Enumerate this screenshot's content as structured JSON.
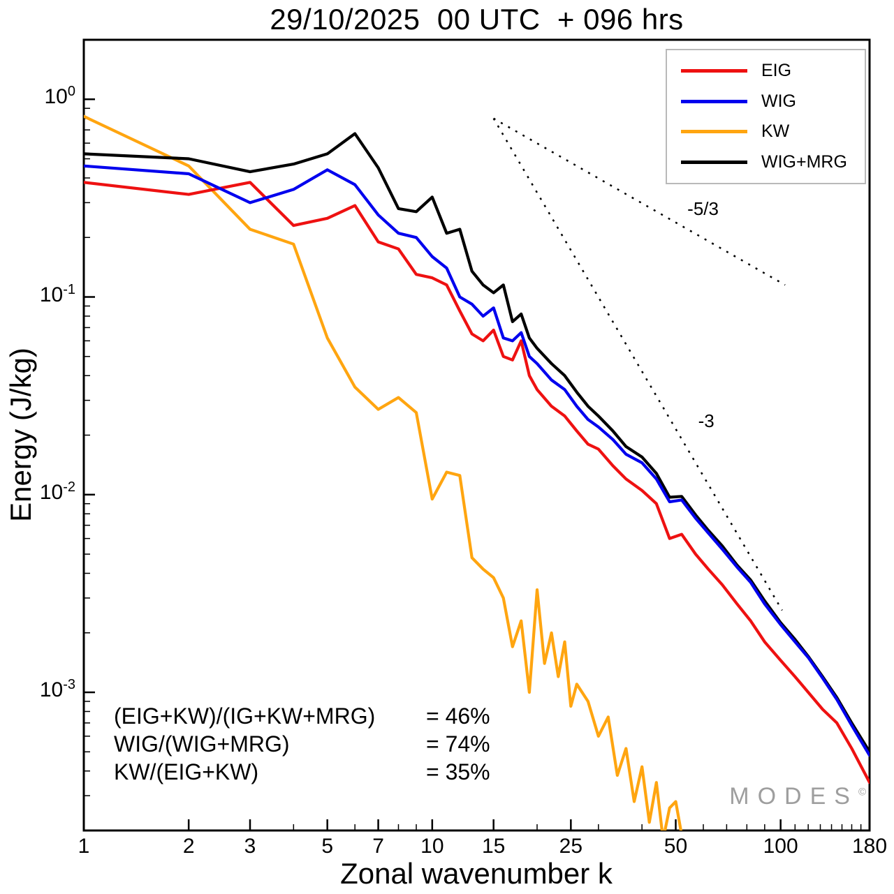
{
  "chart_data": {
    "type": "line",
    "title": "29/10/2025  00 UTC  + 096 hrs",
    "xlabel": "Zonal wavenumber k",
    "ylabel": "Energy (J/kg)",
    "x_scale": "log",
    "y_scale": "log",
    "xlim": [
      1,
      180
    ],
    "ylim": [
      0.0002,
      2
    ],
    "grid": false,
    "legend_position": "top-right",
    "x_major_ticks": [
      1,
      2,
      3,
      5,
      7,
      10,
      15,
      25,
      50,
      100,
      180
    ],
    "x_minor_ticks": [
      4,
      6,
      8,
      9,
      20,
      30,
      40,
      60,
      70,
      80,
      90,
      110,
      120,
      130,
      140,
      150,
      160,
      170
    ],
    "y_major_ticks": [
      {
        "base": "10",
        "exp": "0",
        "value": 1
      },
      {
        "base": "10",
        "exp": "-1",
        "value": 0.1
      },
      {
        "base": "10",
        "exp": "-2",
        "value": 0.01
      },
      {
        "base": "10",
        "exp": "-3",
        "value": 0.001
      }
    ],
    "y_minor_mantissas": [
      2,
      3,
      4,
      5,
      6,
      7,
      8,
      9
    ],
    "series": [
      {
        "name": "EIG",
        "color": "#ee1111",
        "points": [
          [
            1,
            0.38
          ],
          [
            2,
            0.33
          ],
          [
            3,
            0.38
          ],
          [
            4,
            0.23
          ],
          [
            5,
            0.25
          ],
          [
            6,
            0.29
          ],
          [
            7,
            0.19
          ],
          [
            8,
            0.175
          ],
          [
            9,
            0.13
          ],
          [
            10,
            0.125
          ],
          [
            11,
            0.115
          ],
          [
            12,
            0.085
          ],
          [
            13,
            0.065
          ],
          [
            14,
            0.06
          ],
          [
            15,
            0.068
          ],
          [
            16,
            0.05
          ],
          [
            17,
            0.048
          ],
          [
            18,
            0.06
          ],
          [
            19,
            0.04
          ],
          [
            20,
            0.034
          ],
          [
            22,
            0.028
          ],
          [
            24,
            0.025
          ],
          [
            26,
            0.021
          ],
          [
            28,
            0.018
          ],
          [
            30,
            0.017
          ],
          [
            33,
            0.014
          ],
          [
            36,
            0.012
          ],
          [
            40,
            0.0105
          ],
          [
            44,
            0.009
          ],
          [
            48,
            0.006
          ],
          [
            52,
            0.0063
          ],
          [
            57,
            0.005
          ],
          [
            62,
            0.0042
          ],
          [
            68,
            0.0035
          ],
          [
            75,
            0.0028
          ],
          [
            82,
            0.0023
          ],
          [
            90,
            0.0018
          ],
          [
            100,
            0.00145
          ],
          [
            110,
            0.0012
          ],
          [
            120,
            0.001
          ],
          [
            132,
            0.00082
          ],
          [
            145,
            0.0007
          ],
          [
            160,
            0.00052
          ],
          [
            180,
            0.00035
          ]
        ]
      },
      {
        "name": "WIG",
        "color": "#0000ee",
        "points": [
          [
            1,
            0.46
          ],
          [
            2,
            0.42
          ],
          [
            3,
            0.3
          ],
          [
            4,
            0.35
          ],
          [
            5,
            0.44
          ],
          [
            6,
            0.37
          ],
          [
            7,
            0.26
          ],
          [
            8,
            0.21
          ],
          [
            9,
            0.2
          ],
          [
            10,
            0.16
          ],
          [
            11,
            0.14
          ],
          [
            12,
            0.1
          ],
          [
            13,
            0.092
          ],
          [
            14,
            0.08
          ],
          [
            15,
            0.088
          ],
          [
            16,
            0.062
          ],
          [
            17,
            0.06
          ],
          [
            18,
            0.066
          ],
          [
            19,
            0.05
          ],
          [
            20,
            0.046
          ],
          [
            22,
            0.038
          ],
          [
            24,
            0.034
          ],
          [
            26,
            0.028
          ],
          [
            28,
            0.024
          ],
          [
            30,
            0.022
          ],
          [
            33,
            0.019
          ],
          [
            36,
            0.016
          ],
          [
            40,
            0.0145
          ],
          [
            44,
            0.012
          ],
          [
            48,
            0.0092
          ],
          [
            52,
            0.0094
          ],
          [
            57,
            0.0076
          ],
          [
            62,
            0.0064
          ],
          [
            68,
            0.0053
          ],
          [
            75,
            0.0043
          ],
          [
            82,
            0.0036
          ],
          [
            90,
            0.0028
          ],
          [
            100,
            0.0022
          ],
          [
            110,
            0.0018
          ],
          [
            120,
            0.0015
          ],
          [
            132,
            0.00118
          ],
          [
            145,
            0.00092
          ],
          [
            160,
            0.00068
          ],
          [
            180,
            0.00048
          ]
        ]
      },
      {
        "name": "KW",
        "color": "#ffa510",
        "points": [
          [
            1,
            0.82
          ],
          [
            2,
            0.46
          ],
          [
            3,
            0.22
          ],
          [
            4,
            0.185
          ],
          [
            5,
            0.062
          ],
          [
            6,
            0.035
          ],
          [
            7,
            0.027
          ],
          [
            8,
            0.031
          ],
          [
            9,
            0.026
          ],
          [
            10,
            0.0095
          ],
          [
            11,
            0.013
          ],
          [
            12,
            0.0125
          ],
          [
            13,
            0.0048
          ],
          [
            14,
            0.0042
          ],
          [
            15,
            0.0038
          ],
          [
            16,
            0.003
          ],
          [
            17,
            0.0017
          ],
          [
            18,
            0.0023
          ],
          [
            19,
            0.001
          ],
          [
            20,
            0.0033
          ],
          [
            21,
            0.0014
          ],
          [
            22,
            0.002
          ],
          [
            23,
            0.0012
          ],
          [
            24,
            0.0018
          ],
          [
            25,
            0.00085
          ],
          [
            26,
            0.0011
          ],
          [
            28,
            0.0009
          ],
          [
            30,
            0.0006
          ],
          [
            32,
            0.00075
          ],
          [
            34,
            0.00038
          ],
          [
            36,
            0.00052
          ],
          [
            38,
            0.00028
          ],
          [
            40,
            0.00042
          ],
          [
            42,
            0.00022
          ],
          [
            44,
            0.00035
          ],
          [
            46,
            0.00018
          ],
          [
            48,
            0.00026
          ],
          [
            50,
            0.00028
          ],
          [
            52,
            0.00019
          ],
          [
            55,
            0.00013
          ]
        ]
      },
      {
        "name": "WIG+MRG",
        "color": "#000000",
        "points": [
          [
            1,
            0.53
          ],
          [
            2,
            0.5
          ],
          [
            3,
            0.43
          ],
          [
            4,
            0.47
          ],
          [
            5,
            0.53
          ],
          [
            6,
            0.67
          ],
          [
            7,
            0.45
          ],
          [
            8,
            0.28
          ],
          [
            9,
            0.27
          ],
          [
            10,
            0.32
          ],
          [
            11,
            0.21
          ],
          [
            12,
            0.22
          ],
          [
            13,
            0.135
          ],
          [
            14,
            0.115
          ],
          [
            15,
            0.105
          ],
          [
            16,
            0.115
          ],
          [
            17,
            0.075
          ],
          [
            18,
            0.082
          ],
          [
            19,
            0.062
          ],
          [
            20,
            0.055
          ],
          [
            22,
            0.046
          ],
          [
            24,
            0.04
          ],
          [
            26,
            0.033
          ],
          [
            28,
            0.028
          ],
          [
            30,
            0.025
          ],
          [
            33,
            0.021
          ],
          [
            36,
            0.0175
          ],
          [
            40,
            0.0155
          ],
          [
            44,
            0.0128
          ],
          [
            48,
            0.0097
          ],
          [
            52,
            0.0098
          ],
          [
            57,
            0.0079
          ],
          [
            62,
            0.0066
          ],
          [
            68,
            0.0055
          ],
          [
            75,
            0.0044
          ],
          [
            82,
            0.0037
          ],
          [
            90,
            0.0029
          ],
          [
            100,
            0.00225
          ],
          [
            110,
            0.00185
          ],
          [
            120,
            0.00152
          ],
          [
            132,
            0.0012
          ],
          [
            145,
            0.00094
          ],
          [
            160,
            0.0007
          ],
          [
            180,
            0.0005
          ]
        ]
      }
    ],
    "reference_lines": [
      {
        "label": "-5/3",
        "start": [
          15,
          0.8
        ],
        "end": [
          103,
          0.115
        ],
        "style": "dashed",
        "color": "#000000",
        "label_at": [
          54,
          0.26
        ]
      },
      {
        "label": "-3",
        "start": [
          15,
          0.8
        ],
        "end": [
          101,
          0.0026
        ],
        "style": "dashed",
        "color": "#000000",
        "label_at": [
          58,
          0.022
        ]
      }
    ],
    "stats": [
      {
        "label": "(EIG+KW)/(IG+KW+MRG)",
        "value": "= 46%"
      },
      {
        "label": "WIG/(WIG+MRG)",
        "value": "= 74%"
      },
      {
        "label": "KW/(EIG+KW)",
        "value": "= 35%"
      }
    ],
    "watermark": {
      "text": "MODES",
      "sup": "©"
    }
  }
}
